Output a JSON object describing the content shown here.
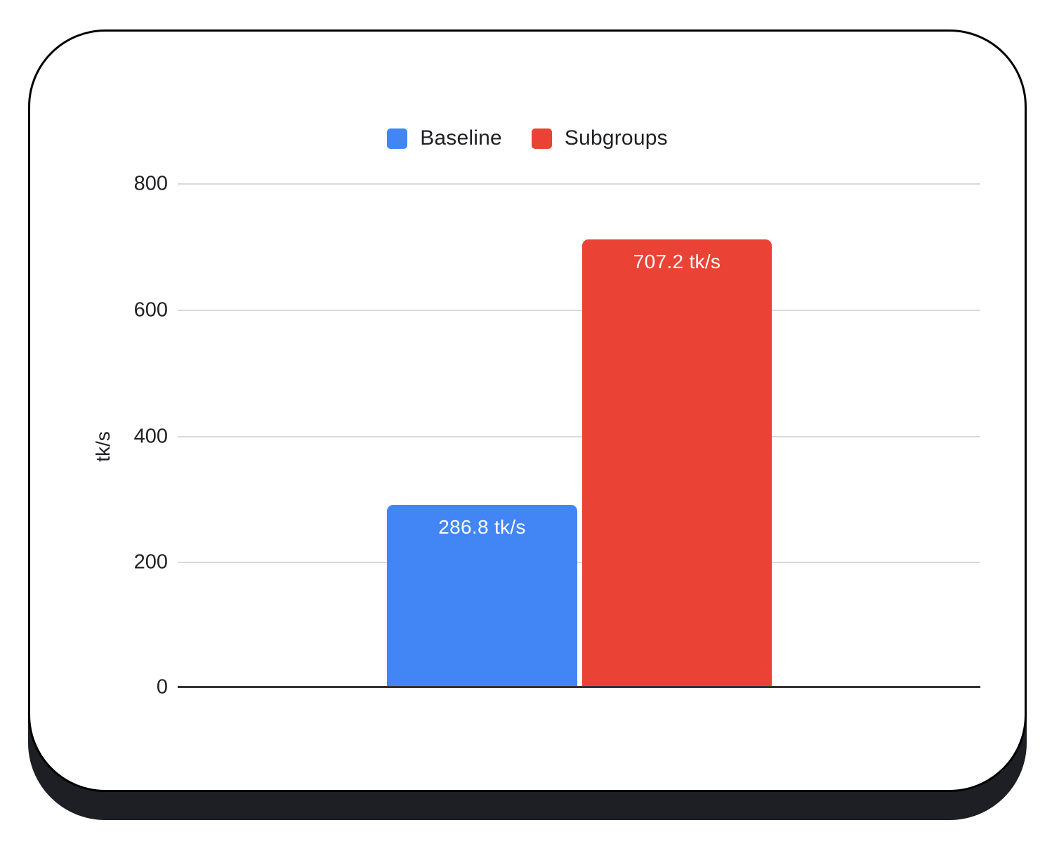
{
  "chart_data": {
    "type": "bar",
    "title": "",
    "categories": [
      ""
    ],
    "series": [
      {
        "name": "Baseline",
        "color": "#4285F4",
        "values": [
          286.8
        ],
        "data_label": "286.8 tk/s"
      },
      {
        "name": "Subgroups",
        "color": "#EA4335",
        "values": [
          707.2
        ],
        "data_label": "707.2 tk/s"
      }
    ],
    "xlabel": "",
    "ylabel": "tk/s",
    "ylim": [
      0,
      800
    ],
    "yticks": [
      "800",
      "600",
      "400",
      "200",
      "0"
    ],
    "grid": true,
    "legend_position": "top"
  },
  "colors": {
    "baseline_bar": "#4285F4",
    "subgroups_bar": "#EA4335",
    "gridline": "#D9D9D9",
    "axis_line": "#333333",
    "tick_text": "#202124",
    "bar_label_text": "#FFFFFF",
    "card_background": "#FFFFFF",
    "card_border": "#000000",
    "card_shadow": "#1E1F24"
  }
}
